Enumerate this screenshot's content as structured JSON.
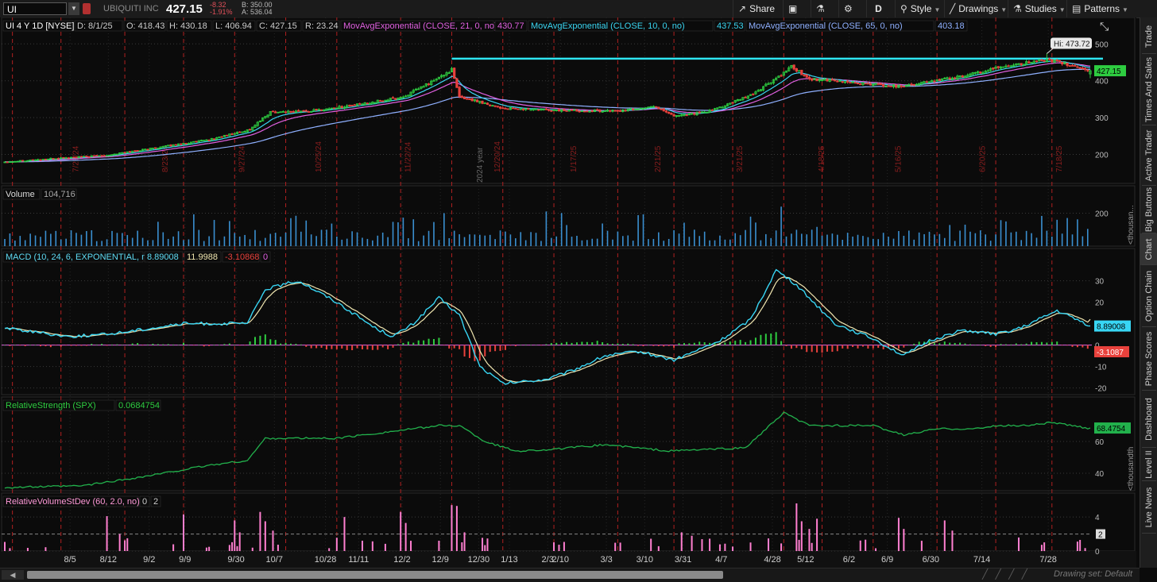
{
  "header": {
    "symbol": "UI",
    "company": "UBIQUITI INC",
    "last": "427.15",
    "change": "-8.32",
    "change_pct": "-1.91%",
    "bid": "B: 350.00",
    "ask": "A: 536.04",
    "buttons": {
      "share": "Share",
      "interval": "D",
      "style": "Style",
      "drawings": "Drawings",
      "studies": "Studies",
      "patterns": "Patterns"
    }
  },
  "sidebar": [
    "Trade",
    "Times And Sales",
    "Active Trader",
    "Big Buttons",
    "Chart",
    "Option Chain",
    "Phase Scores",
    "Dashboard",
    "Level II",
    "Live News"
  ],
  "footer": {
    "drawing_set": "Drawing set: Default"
  },
  "colors": {
    "up": "#2ecc40",
    "down": "#e8413c",
    "ema21": "#e060e0",
    "ema10": "#3ad6f2",
    "ema65": "#8fb0ff",
    "hline": "#2ee6f2",
    "macd": "#38d6f4",
    "signal": "#f0e6b0",
    "rs": "#22b14c",
    "rvol": "#ff7fd0",
    "vol": "#3a8fd0",
    "grid": "#3a3a3a",
    "vline": "#b02020"
  },
  "chart_data": [
    {
      "type": "candlestick",
      "header": {
        "title": "UI 4 Y 1D [NYSE]",
        "date": "D: 8/1/25",
        "open": "O: 418.43",
        "high": "H: 430.18",
        "low": "L: 406.94",
        "close": "C: 427.15",
        "range": "R: 23.24"
      },
      "studies": [
        {
          "label": "MovAvgExponential (CLOSE, 21, 0, no)",
          "value": "430.77"
        },
        {
          "label": "MovAvgExponential (CLOSE, 10, 0, no)",
          "value": "437.53"
        },
        {
          "label": "MovAvgExponential (CLOSE, 65, 0, no)",
          "value": "403.18"
        }
      ],
      "ylim": [
        130,
        520
      ],
      "yticks": [
        {
          "v": 200,
          "t": "200"
        },
        {
          "v": 300,
          "t": "300"
        },
        {
          "v": 400,
          "t": "400"
        },
        {
          "v": 500,
          "t": "500"
        }
      ],
      "hi_label": "Hi: 473.72",
      "last_label": "427.15",
      "horizontal_line": 460,
      "earnings_dates": [
        "7/26/24",
        "8/23/24",
        "9/27/24",
        "10/25/24",
        "11/22/24",
        "12/20/24",
        "1/17/25",
        "2/21/25",
        "3/21/25",
        "4/18/25",
        "5/16/25",
        "6/20/25",
        "7/18/25"
      ],
      "year_label": "2024 year",
      "close_anchors": [
        [
          0,
          180
        ],
        [
          40,
          198
        ],
        [
          80,
          240
        ],
        [
          96,
          268
        ],
        [
          104,
          315
        ],
        [
          120,
          318
        ],
        [
          138,
          335
        ],
        [
          156,
          356
        ],
        [
          170,
          408
        ],
        [
          175,
          430
        ],
        [
          178,
          355
        ],
        [
          185,
          345
        ],
        [
          195,
          325
        ],
        [
          215,
          320
        ],
        [
          240,
          318
        ],
        [
          255,
          330
        ],
        [
          262,
          305
        ],
        [
          275,
          315
        ],
        [
          292,
          360
        ],
        [
          305,
          420
        ],
        [
          308,
          438
        ],
        [
          315,
          405
        ],
        [
          330,
          396
        ],
        [
          350,
          385
        ],
        [
          375,
          412
        ],
        [
          395,
          445
        ],
        [
          410,
          455
        ],
        [
          425,
          427
        ]
      ]
    },
    {
      "type": "bar",
      "name": "Volume",
      "label": "Volume",
      "value": "104,716",
      "ylim": [
        0,
        270
      ],
      "yticks": [
        {
          "v": 200,
          "t": "200"
        }
      ],
      "axis_unit": "<thousan..."
    },
    {
      "type": "line",
      "name": "MACD",
      "label": "MACD (10, 24, 6, EXPONENTIAL, no)",
      "values": [
        "8.89008",
        "11.9988",
        "-3.10868",
        "0"
      ],
      "ylim": [
        -22,
        38
      ],
      "yticks": [
        {
          "v": 30,
          "t": "30"
        },
        {
          "v": 20,
          "t": "20"
        },
        {
          "v": 10,
          "t": "10"
        },
        {
          "v": 0,
          "t": "0"
        },
        {
          "v": -10,
          "t": "-10"
        },
        {
          "v": -20,
          "t": "-20"
        }
      ],
      "last_labels": [
        "8.89008",
        "-3.1087"
      ],
      "anchors": [
        [
          0,
          8
        ],
        [
          25,
          4
        ],
        [
          40,
          5
        ],
        [
          70,
          10
        ],
        [
          95,
          10
        ],
        [
          102,
          26
        ],
        [
          115,
          30
        ],
        [
          130,
          20
        ],
        [
          145,
          8
        ],
        [
          152,
          4
        ],
        [
          160,
          10
        ],
        [
          170,
          22
        ],
        [
          178,
          14
        ],
        [
          186,
          -10
        ],
        [
          195,
          -18
        ],
        [
          212,
          -16
        ],
        [
          222,
          -12
        ],
        [
          235,
          -5
        ],
        [
          248,
          -3
        ],
        [
          262,
          -7
        ],
        [
          280,
          2
        ],
        [
          292,
          12
        ],
        [
          302,
          35
        ],
        [
          310,
          28
        ],
        [
          325,
          10
        ],
        [
          340,
          3
        ],
        [
          352,
          -5
        ],
        [
          362,
          2
        ],
        [
          375,
          7
        ],
        [
          388,
          5
        ],
        [
          398,
          8
        ],
        [
          412,
          16
        ],
        [
          425,
          9
        ]
      ]
    },
    {
      "type": "line",
      "name": "RelativeStrength (SPX)",
      "label": "RelativeStrength (SPX)",
      "value": "0.0684754",
      "ylim": [
        30,
        82
      ],
      "yticks": [
        {
          "v": 60,
          "t": "60"
        },
        {
          "v": 40,
          "t": "40"
        }
      ],
      "last_label": "68.4754",
      "axis_unit": "<thousandth",
      "anchors": [
        [
          0,
          31
        ],
        [
          30,
          32
        ],
        [
          55,
          38
        ],
        [
          80,
          45
        ],
        [
          95,
          48
        ],
        [
          102,
          62
        ],
        [
          130,
          62
        ],
        [
          150,
          66
        ],
        [
          170,
          70
        ],
        [
          178,
          70
        ],
        [
          188,
          60
        ],
        [
          200,
          54
        ],
        [
          215,
          55
        ],
        [
          235,
          58
        ],
        [
          260,
          54
        ],
        [
          290,
          56
        ],
        [
          305,
          78
        ],
        [
          315,
          70
        ],
        [
          340,
          70
        ],
        [
          352,
          64
        ],
        [
          365,
          68
        ],
        [
          380,
          68
        ],
        [
          390,
          70
        ],
        [
          400,
          70
        ],
        [
          410,
          72
        ],
        [
          425,
          68
        ]
      ]
    },
    {
      "type": "bar",
      "name": "RelativeVolumeStDev",
      "label": "RelativeVolumeStDev (60, 2.0, no)",
      "values": [
        "0",
        "2"
      ],
      "ylim": [
        0,
        5.6
      ],
      "yticks": [
        {
          "v": 4,
          "t": "4"
        },
        {
          "v": 0,
          "t": "0"
        }
      ],
      "last_label": "2",
      "threshold": 2
    },
    {
      "type": "axis",
      "x_ticks": [
        "8/5",
        "8/12",
        "9/2",
        "9/9",
        "9/30",
        "10/7",
        "10/28",
        "11/11",
        "12/2",
        "12/9",
        "12/30",
        "1/13",
        "2/3",
        "2/10",
        "3/3",
        "3/10",
        "3/31",
        "4/7",
        "4/28",
        "5/12",
        "6/2",
        "6/9",
        "6/30",
        "7/14",
        "7/28"
      ]
    }
  ]
}
